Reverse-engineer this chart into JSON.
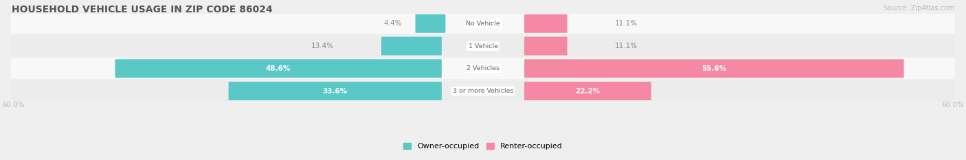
{
  "title": "HOUSEHOLD VEHICLE USAGE IN ZIP CODE 86024",
  "source": "Source: ZipAtlas.com",
  "categories": [
    "No Vehicle",
    "1 Vehicle",
    "2 Vehicles",
    "3 or more Vehicles"
  ],
  "owner_values": [
    4.4,
    13.4,
    48.6,
    33.6
  ],
  "renter_values": [
    11.1,
    11.1,
    55.6,
    22.2
  ],
  "max_val": 60.0,
  "owner_color": "#5bc8c8",
  "renter_color": "#f589a3",
  "bg_color": "#efefef",
  "row_colors": [
    "#f8f8f8",
    "#ececec",
    "#f8f8f8",
    "#ececec"
  ],
  "title_color": "#555555",
  "label_color_dark": "#888888",
  "axis_label_color": "#bbbbbb",
  "center_label_color": "#666666",
  "label_inside_color": "#ffffff",
  "label_threshold": 20
}
